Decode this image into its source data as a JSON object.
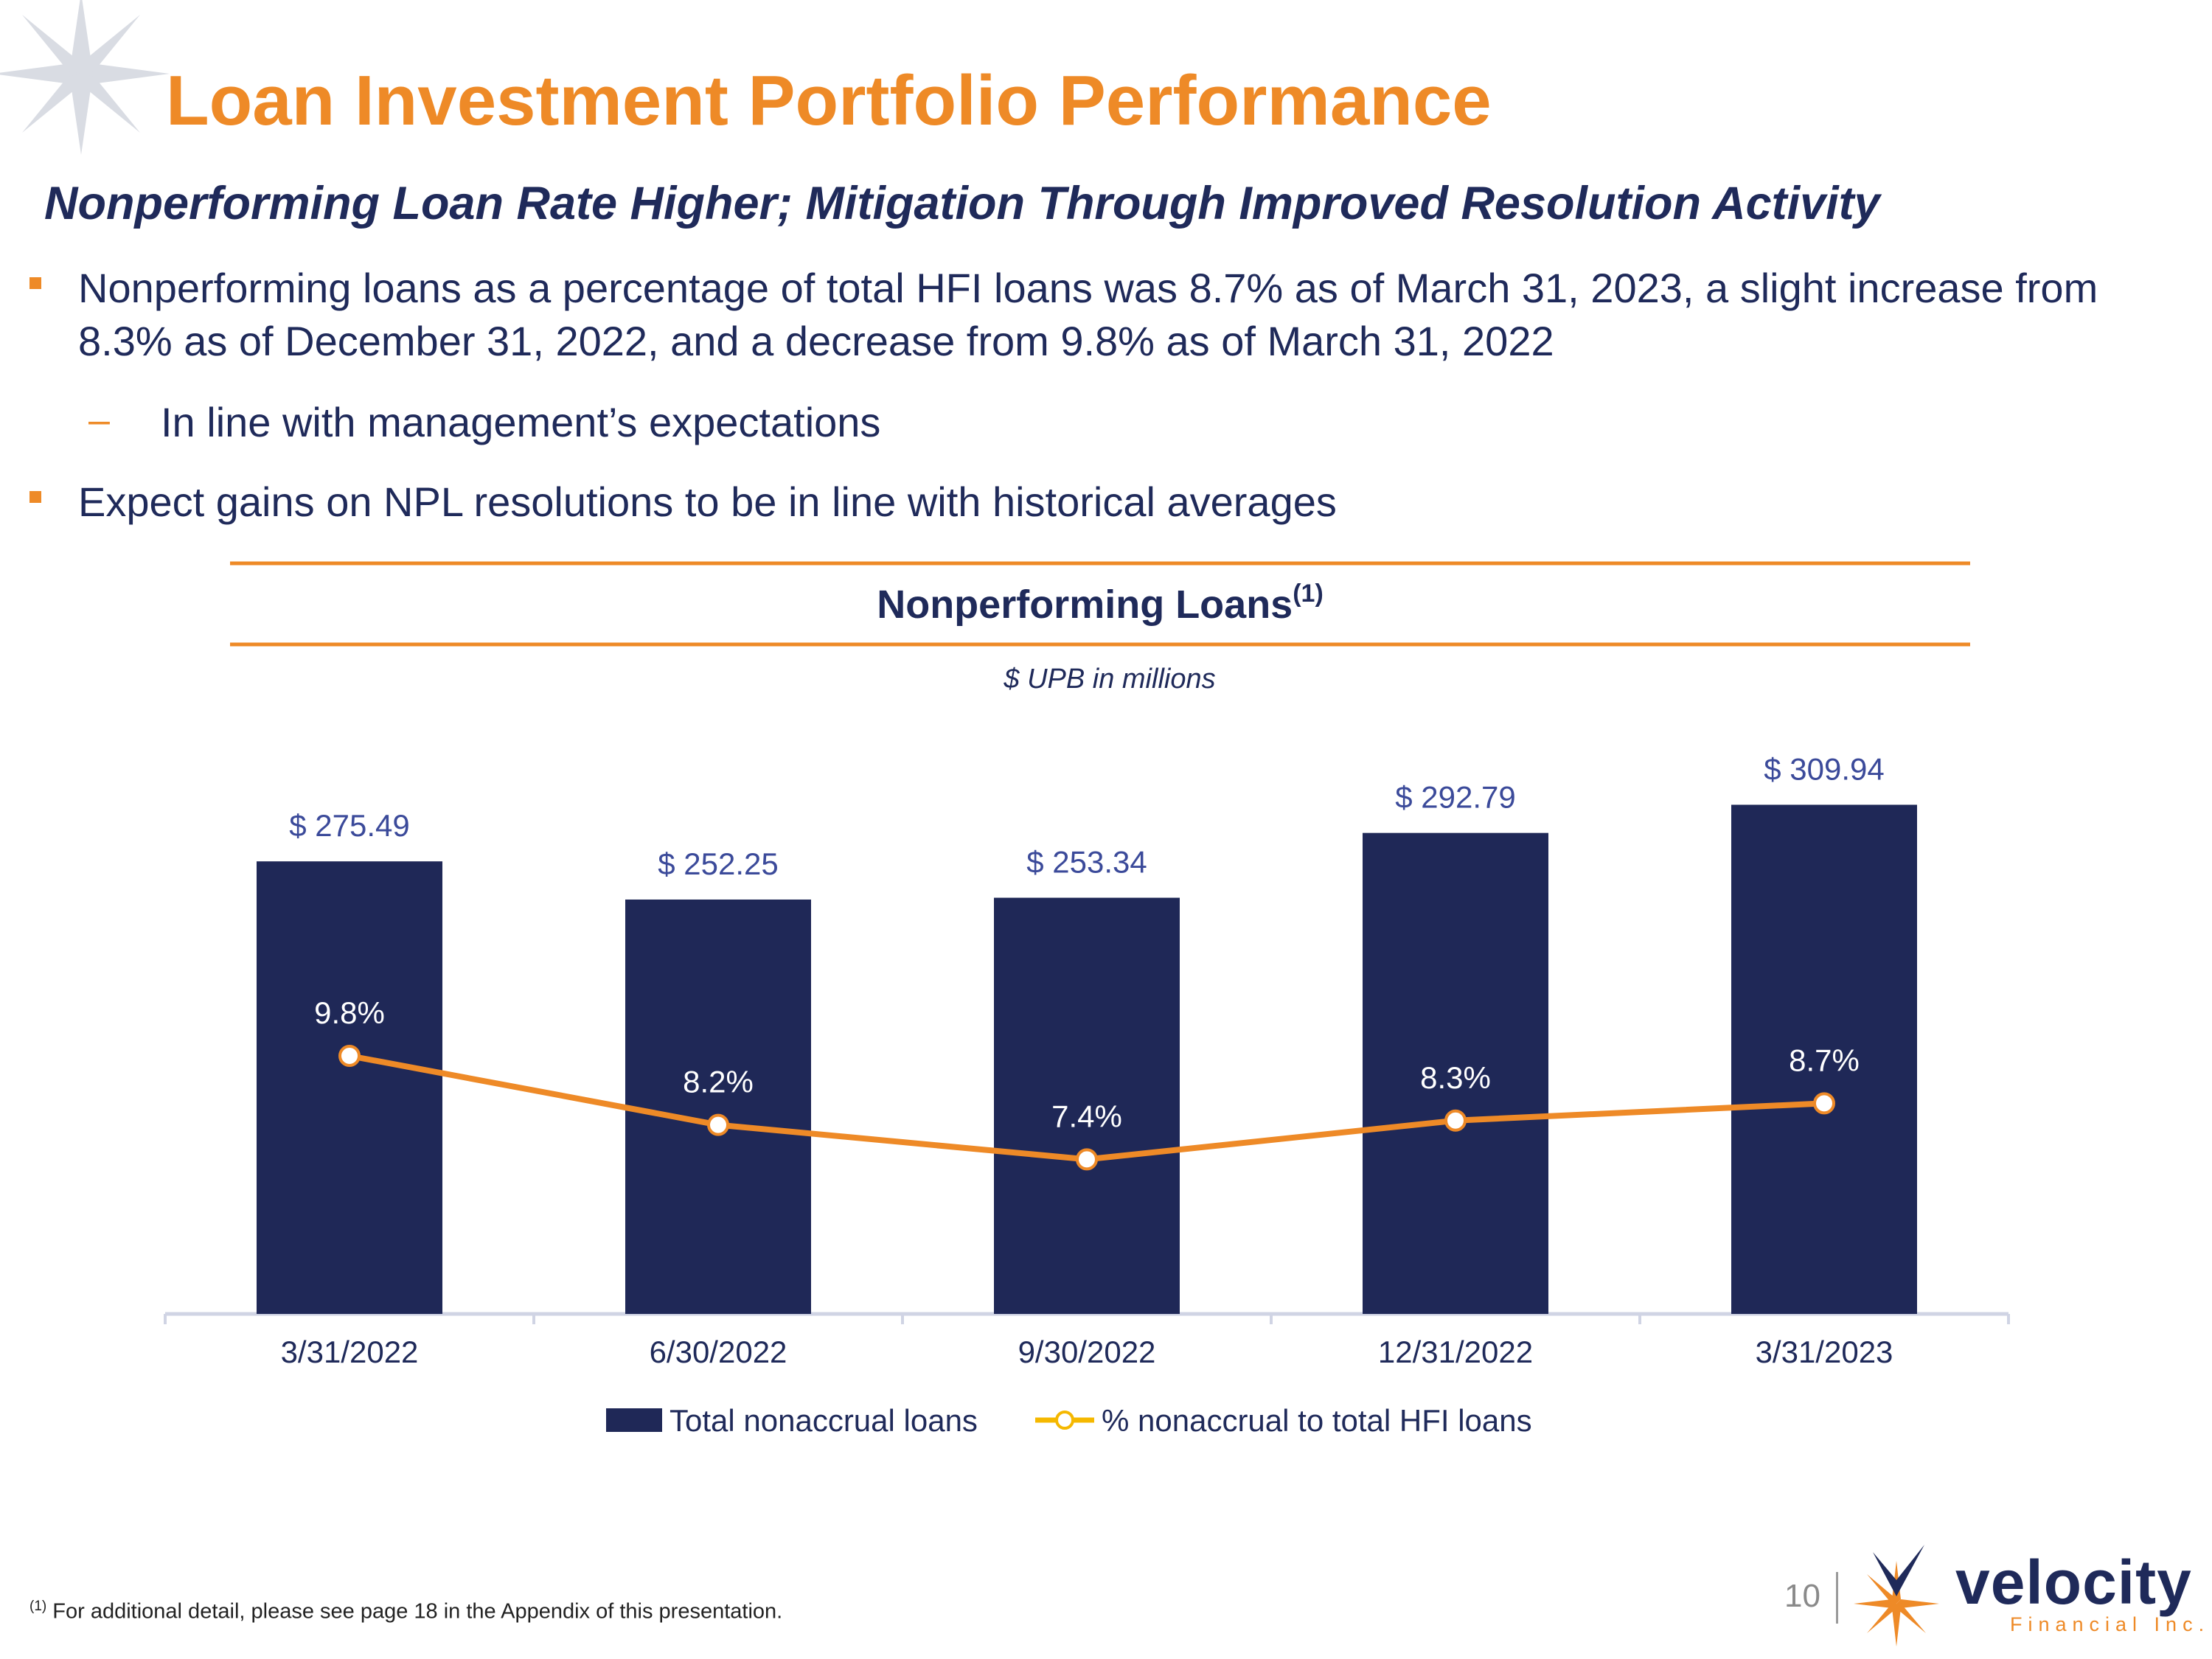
{
  "header": {
    "title": "Loan Investment Portfolio Performance",
    "subtitle": "Nonperforming Loan Rate Higher; Mitigation Through Improved Resolution Activity"
  },
  "bullets": {
    "b1_line1": "Nonperforming loans as a percentage of total HFI loans was 8.7% as of March 31, 2023, a slight increase from",
    "b1_line2": "8.3% as of December 31, 2022, and a decrease from 9.8% as of March 31, 2022",
    "sub_dash": "–",
    "sub_text": "In line with management’s expectations",
    "b2": "Expect gains on NPL resolutions to be in line with historical averages"
  },
  "chart_data": {
    "type": "bar",
    "title": "Nonperforming Loans",
    "title_superscript": "(1)",
    "subtitle": "$ UPB in millions",
    "categories": [
      "3/31/2022",
      "6/30/2022",
      "9/30/2022",
      "12/31/2022",
      "3/31/2023"
    ],
    "series": [
      {
        "name": "Total nonaccrual loans",
        "type": "bar",
        "values": [
          275.49,
          252.25,
          253.34,
          292.79,
          309.94
        ],
        "labels": [
          "$ 275.49",
          "$ 252.25",
          "$ 253.34",
          "$ 292.79",
          "$ 309.94"
        ],
        "color": "#1f2857"
      },
      {
        "name": "% nonaccrual to total HFI loans",
        "type": "line",
        "values": [
          9.8,
          8.2,
          7.4,
          8.3,
          8.7
        ],
        "labels": [
          "9.8%",
          "8.2%",
          "7.4%",
          "8.3%",
          "8.7%"
        ],
        "color": "#ee8a27"
      }
    ],
    "legend_position": "bottom",
    "grid": false
  },
  "footnote": {
    "mark": "(1)",
    "text": " For additional detail, please see page 18 in the Appendix of this presentation."
  },
  "page_number": "10",
  "logo": {
    "word": "velocity",
    "sub": "Financial Inc."
  },
  "colors": {
    "accent": "#ee8a27",
    "navy": "#1f2857",
    "label_blue": "#3b4a9a"
  }
}
